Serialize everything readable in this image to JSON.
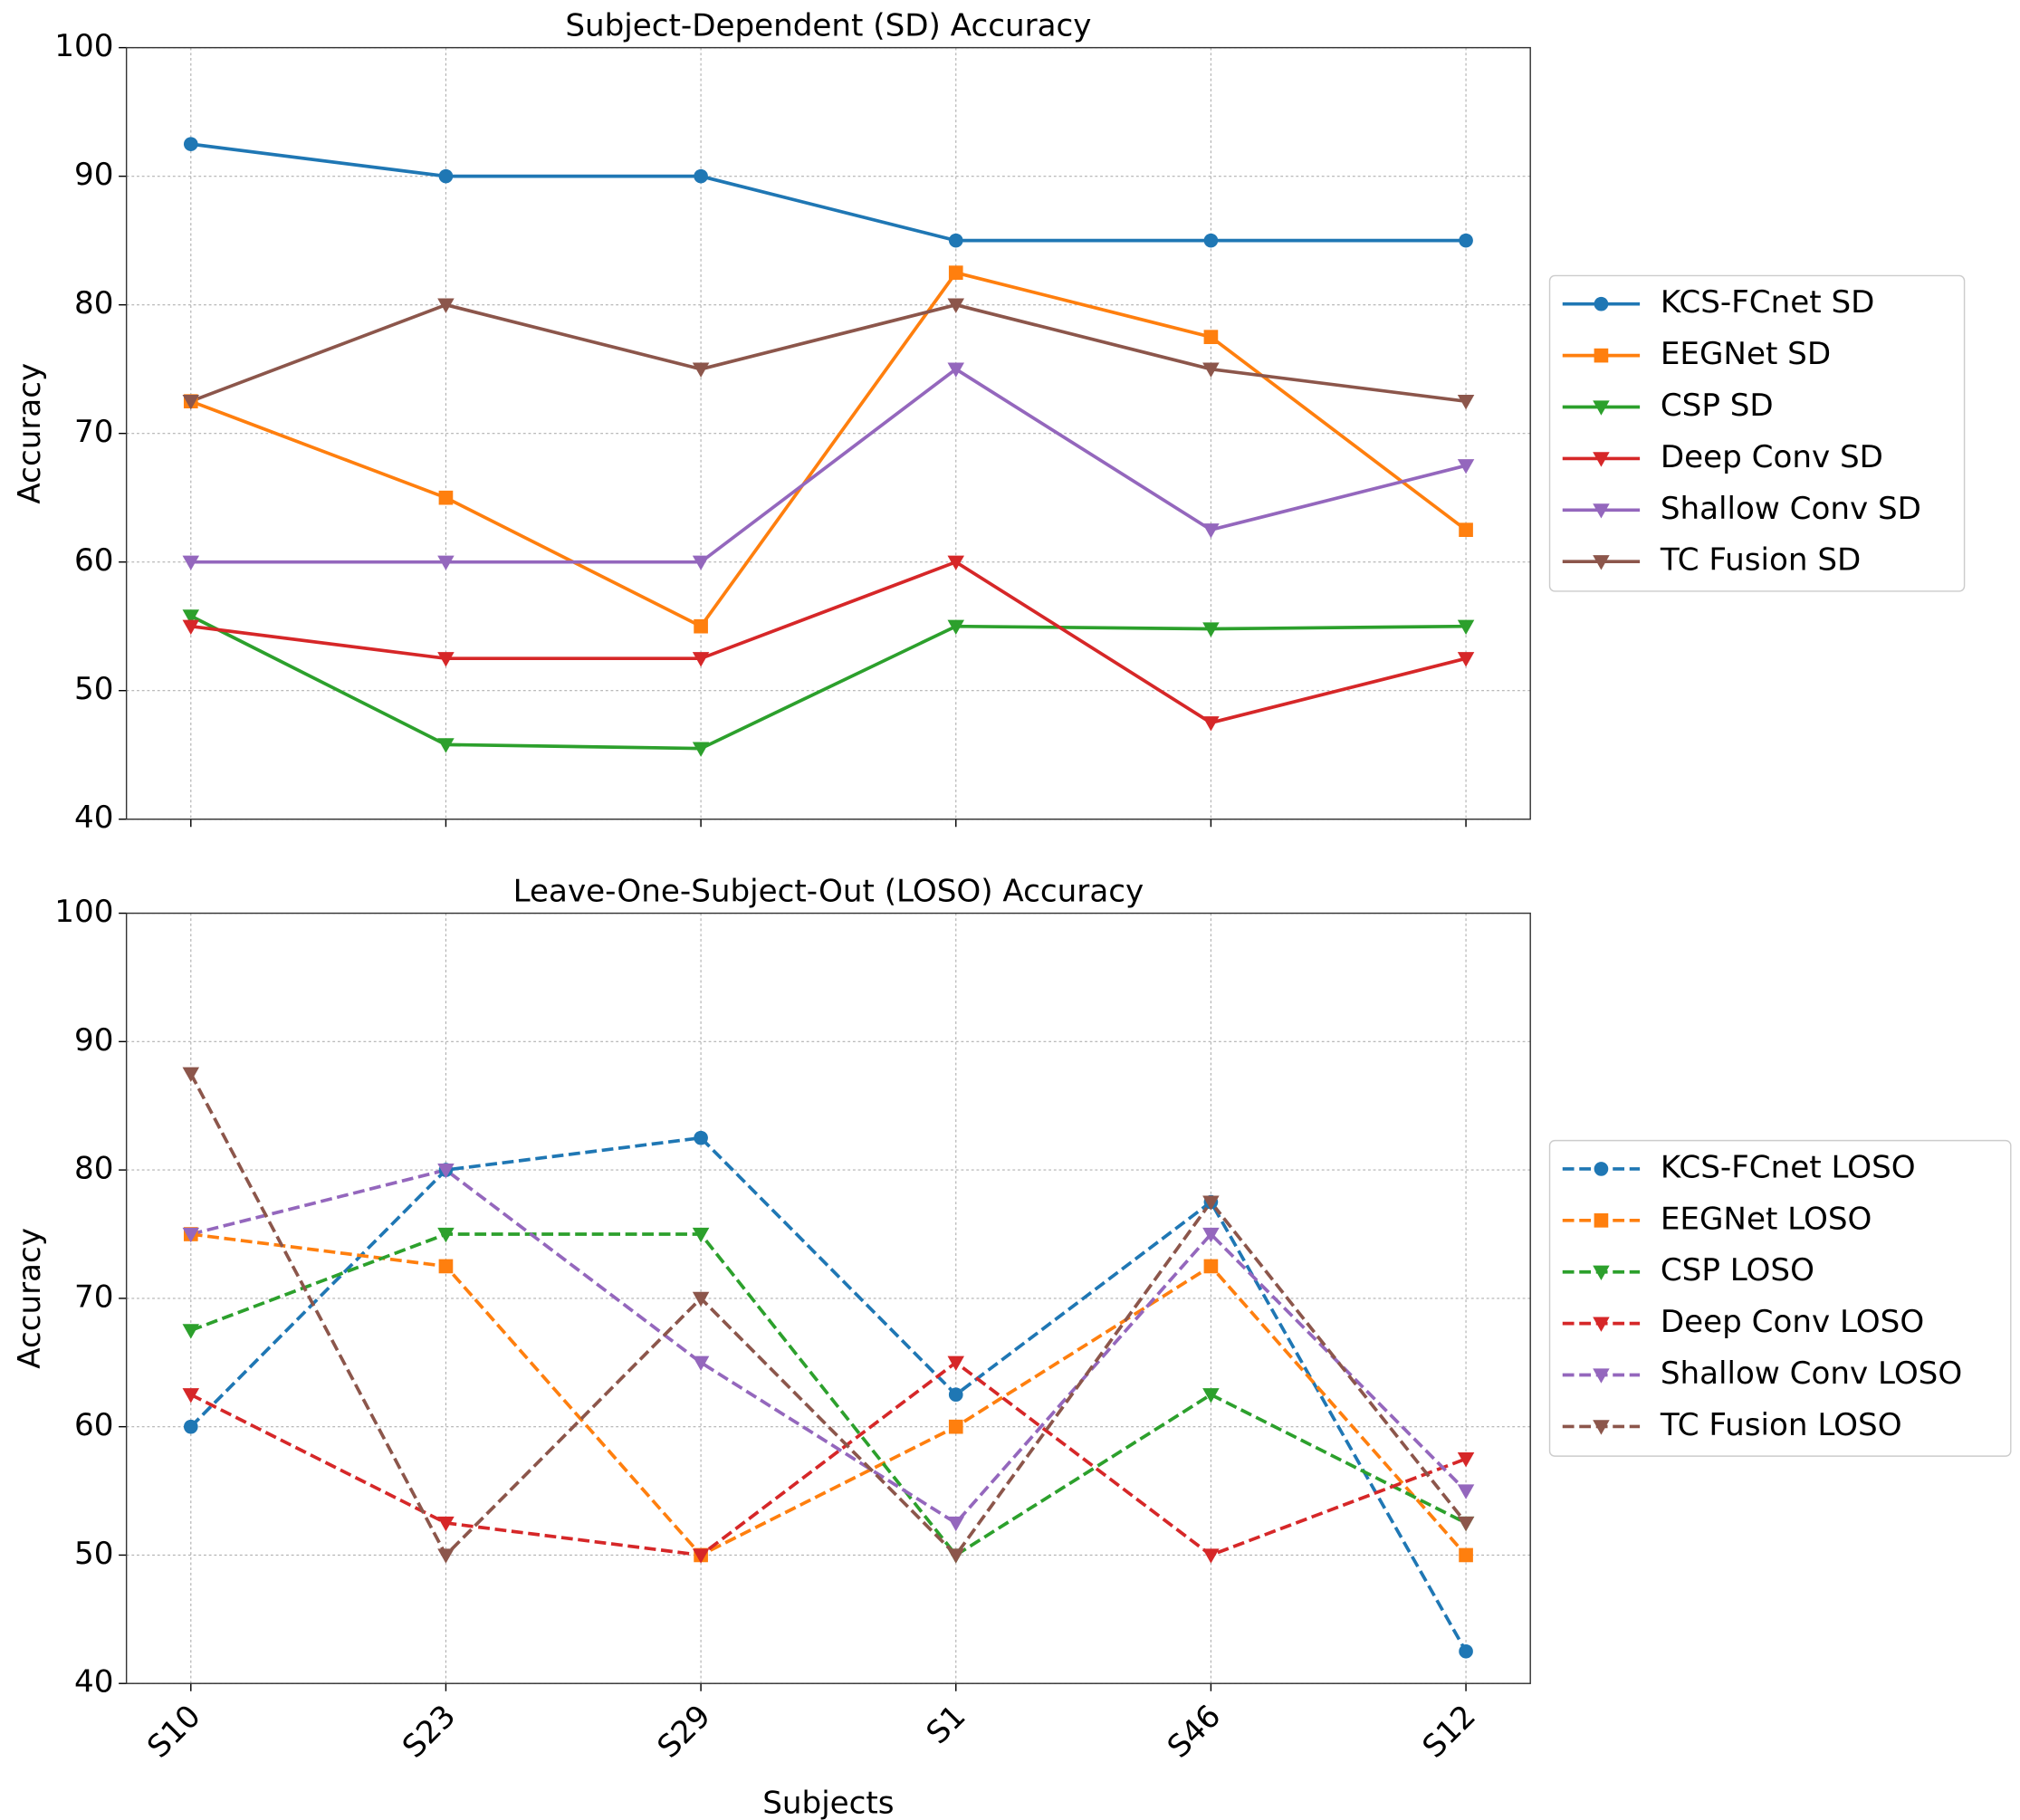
{
  "chart_data": [
    {
      "type": "line",
      "title": "Subject-Dependent (SD) Accuracy",
      "ylabel": "Accuracy",
      "categories": [
        null,
        null,
        null,
        null,
        null,
        null
      ],
      "ylim": [
        40,
        100
      ],
      "yticks": [
        40,
        50,
        60,
        70,
        80,
        90,
        100
      ],
      "grid": true,
      "legend": "right",
      "series": [
        {
          "name": "KCS-FCnet SD",
          "color": "#1f77b4",
          "marker": "o",
          "linestyle": "solid",
          "values": [
            92.5,
            90,
            90,
            85,
            85,
            85
          ]
        },
        {
          "name": "EEGNet SD",
          "color": "#ff7f0e",
          "marker": "s",
          "linestyle": "solid",
          "values": [
            72.5,
            65,
            55,
            82.5,
            77.5,
            62.5
          ]
        },
        {
          "name": "CSP SD",
          "color": "#2ca02c",
          "marker": "v",
          "linestyle": "solid",
          "values": [
            55.8,
            45.8,
            45.5,
            55,
            54.8,
            55
          ]
        },
        {
          "name": "Deep Conv SD",
          "color": "#d62728",
          "marker": "v",
          "linestyle": "solid",
          "values": [
            55,
            52.5,
            52.5,
            60,
            47.5,
            52.5
          ]
        },
        {
          "name": "Shallow Conv SD",
          "color": "#9467bd",
          "marker": "v",
          "linestyle": "solid",
          "values": [
            60,
            60,
            60,
            75,
            62.5,
            67.5
          ]
        },
        {
          "name": "TC Fusion SD",
          "color": "#8c564b",
          "marker": "v",
          "linestyle": "solid",
          "values": [
            72.5,
            80,
            75,
            80,
            75,
            72.5
          ]
        }
      ]
    },
    {
      "type": "line",
      "title": "Leave-One-Subject-Out (LOSO) Accuracy",
      "ylabel": "Accuracy",
      "xlabel": "Subjects",
      "categories": [
        "S10",
        "S23",
        "S29",
        "S1",
        "S46",
        "S12"
      ],
      "ylim": [
        40,
        100
      ],
      "yticks": [
        40,
        50,
        60,
        70,
        80,
        90,
        100
      ],
      "grid": true,
      "legend": "right",
      "series": [
        {
          "name": "KCS-FCnet LOSO",
          "color": "#1f77b4",
          "marker": "o",
          "linestyle": "dashed",
          "values": [
            60,
            80,
            82.5,
            62.5,
            77.5,
            42.5
          ]
        },
        {
          "name": "EEGNet LOSO",
          "color": "#ff7f0e",
          "marker": "s",
          "linestyle": "dashed",
          "values": [
            75,
            72.5,
            50,
            60,
            72.5,
            50
          ]
        },
        {
          "name": "CSP LOSO",
          "color": "#2ca02c",
          "marker": "v",
          "linestyle": "dashed",
          "values": [
            67.5,
            75,
            75,
            50,
            62.5,
            52.5
          ]
        },
        {
          "name": "Deep Conv LOSO",
          "color": "#d62728",
          "marker": "v",
          "linestyle": "dashed",
          "values": [
            62.5,
            52.5,
            50,
            65,
            50,
            57.5
          ]
        },
        {
          "name": "Shallow Conv LOSO",
          "color": "#9467bd",
          "marker": "v",
          "linestyle": "dashed",
          "values": [
            75,
            80,
            65,
            52.5,
            75,
            55
          ]
        },
        {
          "name": "TC Fusion LOSO",
          "color": "#8c564b",
          "marker": "v",
          "linestyle": "dashed",
          "values": [
            87.5,
            50,
            70,
            50,
            77.5,
            52.5
          ]
        }
      ]
    }
  ]
}
